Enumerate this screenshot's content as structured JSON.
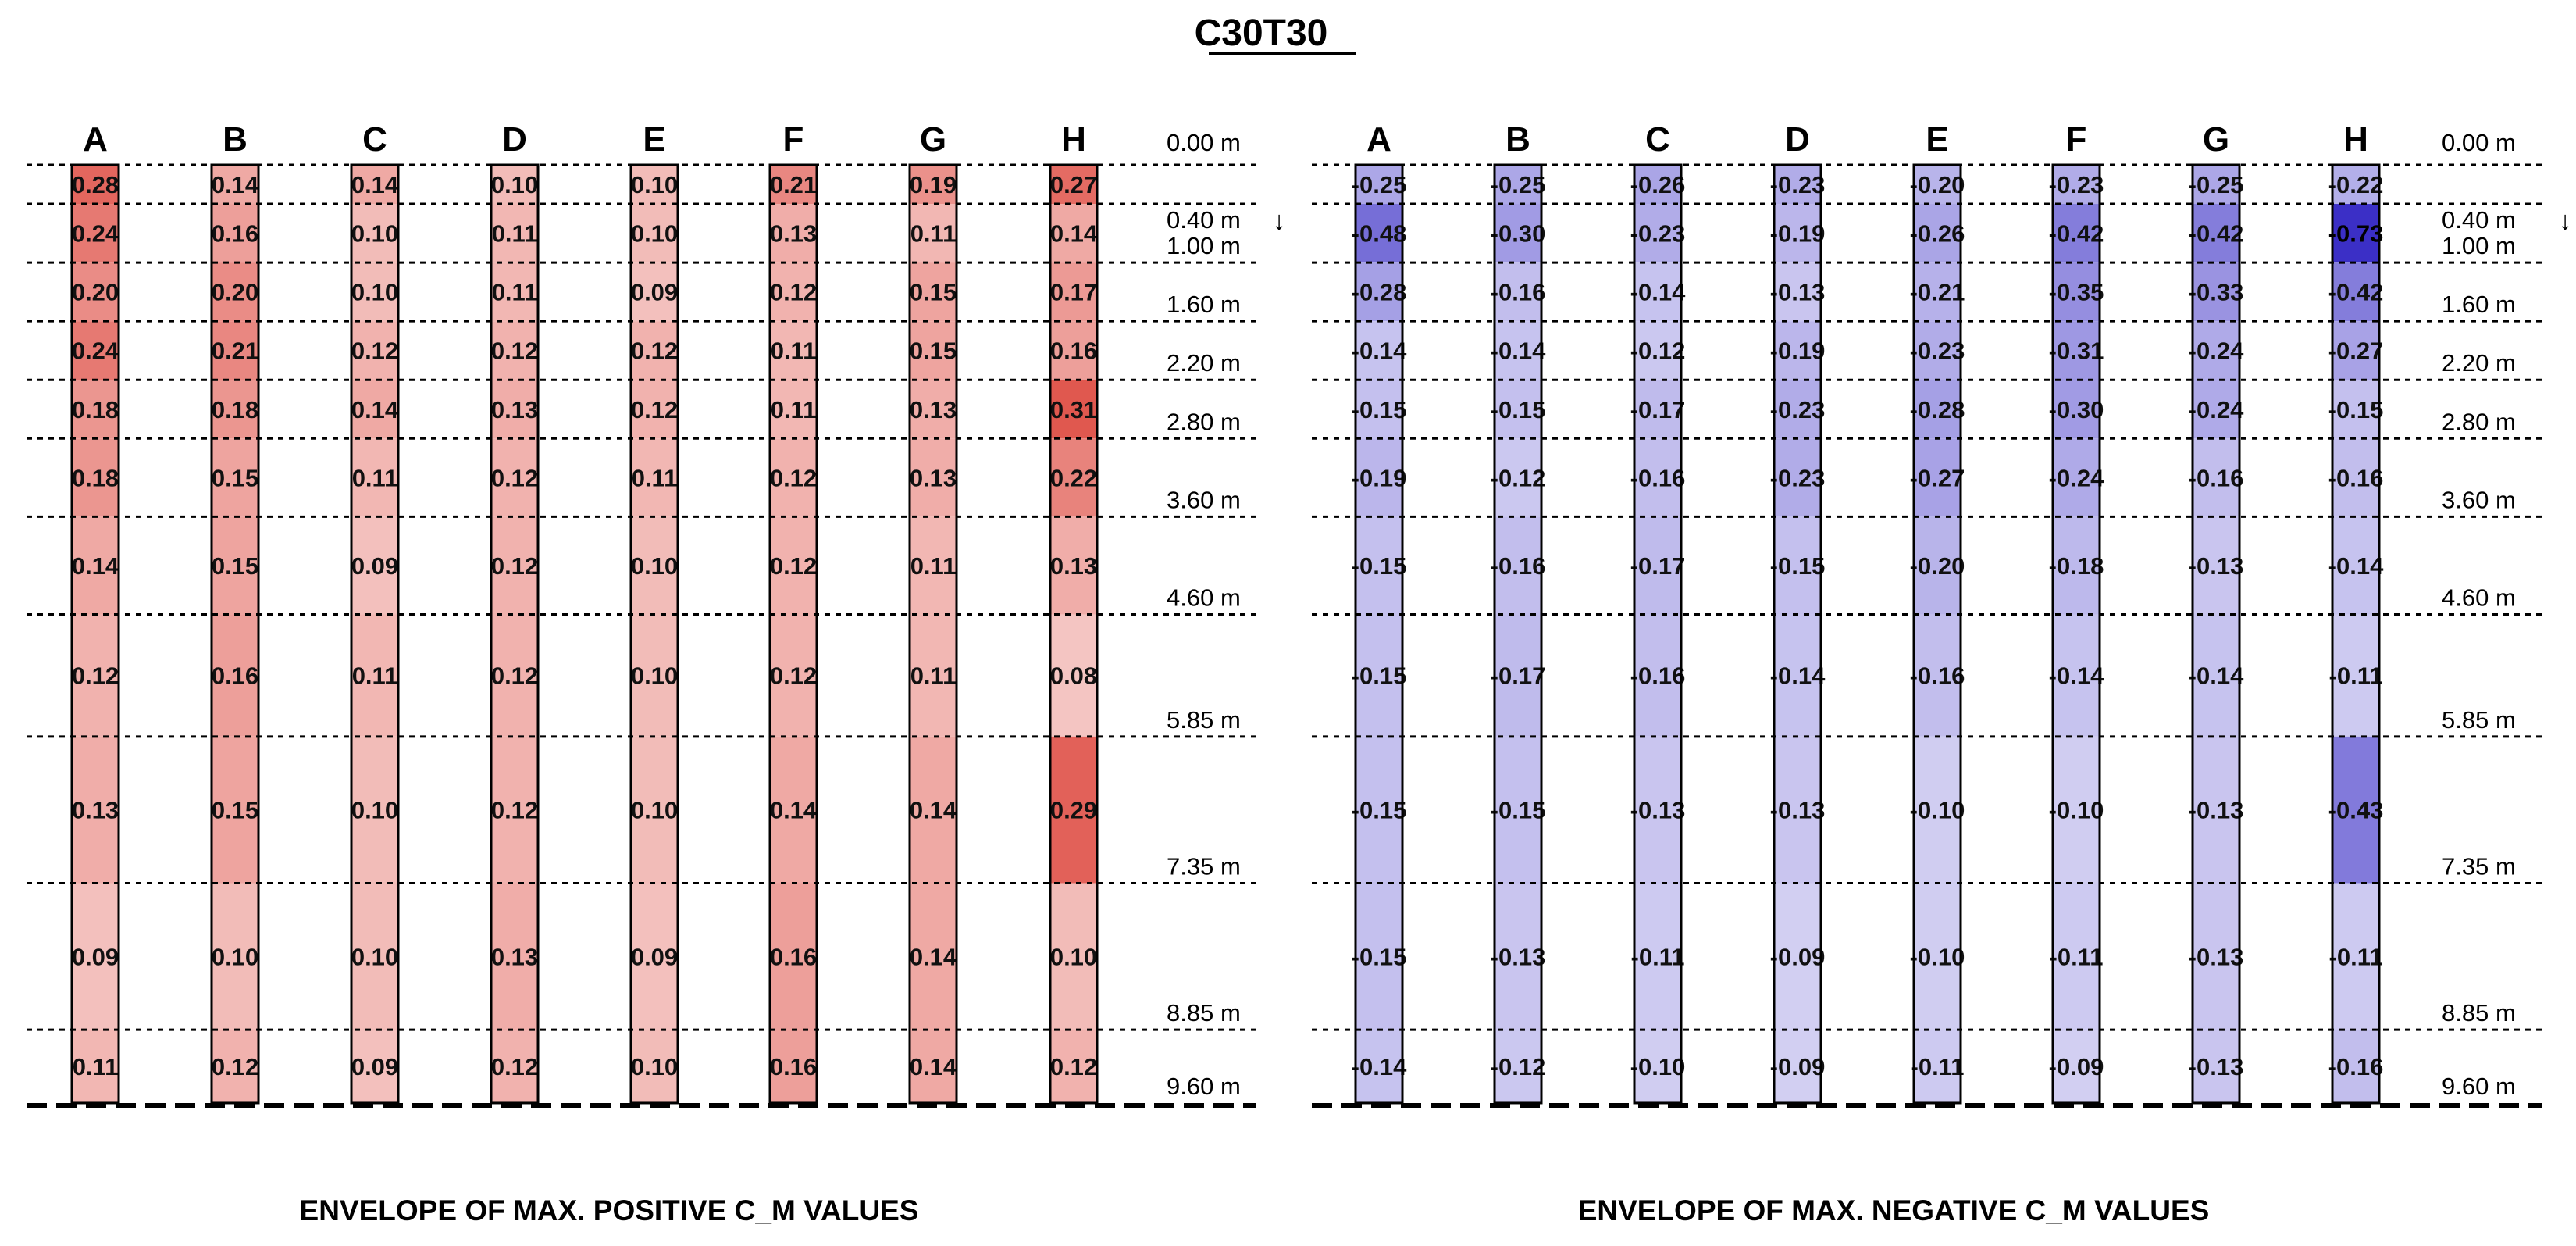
{
  "chart_data": {
    "type": "heatmap",
    "title": "C30T30",
    "columns": [
      "A",
      "B",
      "C",
      "D",
      "E",
      "F",
      "G",
      "H"
    ],
    "top_label": "0.00 m",
    "depth_labels": [
      "0.40 m",
      "1.00 m",
      "1.60 m",
      "2.20 m",
      "2.80 m",
      "3.60 m",
      "4.60 m",
      "5.85 m",
      "7.35 m",
      "8.85 m",
      "9.60 m"
    ],
    "depths": [
      0.4,
      1.0,
      1.6,
      2.2,
      2.8,
      3.6,
      4.6,
      5.85,
      7.35,
      8.85,
      9.6
    ],
    "arrow_symbol": "↓",
    "panels": [
      {
        "name": "positive",
        "caption": "ENVELOPE OF MAX. POSITIVE C_M VALUES",
        "color_full": "#e0584f",
        "values": [
          [
            "0.28",
            "0.14",
            "0.14",
            "0.10",
            "0.10",
            "0.21",
            "0.19",
            "0.27"
          ],
          [
            "0.24",
            "0.16",
            "0.10",
            "0.11",
            "0.10",
            "0.13",
            "0.11",
            "0.14"
          ],
          [
            "0.20",
            "0.20",
            "0.10",
            "0.11",
            "0.09",
            "0.12",
            "0.15",
            "0.17"
          ],
          [
            "0.24",
            "0.21",
            "0.12",
            "0.12",
            "0.12",
            "0.11",
            "0.15",
            "0.16"
          ],
          [
            "0.18",
            "0.18",
            "0.14",
            "0.13",
            "0.12",
            "0.11",
            "0.13",
            "0.31"
          ],
          [
            "0.18",
            "0.15",
            "0.11",
            "0.12",
            "0.11",
            "0.12",
            "0.13",
            "0.22"
          ],
          [
            "0.14",
            "0.15",
            "0.09",
            "0.12",
            "0.10",
            "0.12",
            "0.11",
            "0.13"
          ],
          [
            "0.12",
            "0.16",
            "0.11",
            "0.12",
            "0.10",
            "0.12",
            "0.11",
            "0.08"
          ],
          [
            "0.13",
            "0.15",
            "0.10",
            "0.12",
            "0.10",
            "0.14",
            "0.14",
            "0.29"
          ],
          [
            "0.09",
            "0.10",
            "0.10",
            "0.13",
            "0.09",
            "0.16",
            "0.14",
            "0.10"
          ],
          [
            "0.11",
            "0.12",
            "0.09",
            "0.12",
            "0.10",
            "0.16",
            "0.14",
            "0.12"
          ]
        ]
      },
      {
        "name": "negative",
        "caption": "ENVELOPE OF MAX. NEGATIVE C_M VALUES",
        "color_full": "#3b2fc6",
        "values": [
          [
            "-0.25",
            "-0.25",
            "-0.26",
            "-0.23",
            "-0.20",
            "-0.23",
            "-0.25",
            "-0.22"
          ],
          [
            "-0.48",
            "-0.30",
            "-0.23",
            "-0.19",
            "-0.26",
            "-0.42",
            "-0.42",
            "-0.73"
          ],
          [
            "-0.28",
            "-0.16",
            "-0.14",
            "-0.13",
            "-0.21",
            "-0.35",
            "-0.33",
            "-0.42"
          ],
          [
            "-0.14",
            "-0.14",
            "-0.12",
            "-0.19",
            "-0.23",
            "-0.31",
            "-0.24",
            "-0.27"
          ],
          [
            "-0.15",
            "-0.15",
            "-0.17",
            "-0.23",
            "-0.28",
            "-0.30",
            "-0.24",
            "-0.15"
          ],
          [
            "-0.19",
            "-0.12",
            "-0.16",
            "-0.23",
            "-0.27",
            "-0.24",
            "-0.16",
            "-0.16"
          ],
          [
            "-0.15",
            "-0.16",
            "-0.17",
            "-0.15",
            "-0.20",
            "-0.18",
            "-0.13",
            "-0.14"
          ],
          [
            "-0.15",
            "-0.17",
            "-0.16",
            "-0.14",
            "-0.16",
            "-0.14",
            "-0.14",
            "-0.11"
          ],
          [
            "-0.15",
            "-0.15",
            "-0.13",
            "-0.13",
            "-0.10",
            "-0.10",
            "-0.13",
            "-0.43"
          ],
          [
            "-0.15",
            "-0.13",
            "-0.11",
            "-0.09",
            "-0.10",
            "-0.11",
            "-0.13",
            "-0.11"
          ],
          [
            "-0.14",
            "-0.12",
            "-0.10",
            "-0.09",
            "-0.11",
            "-0.09",
            "-0.13",
            "-0.16"
          ]
        ]
      }
    ]
  }
}
